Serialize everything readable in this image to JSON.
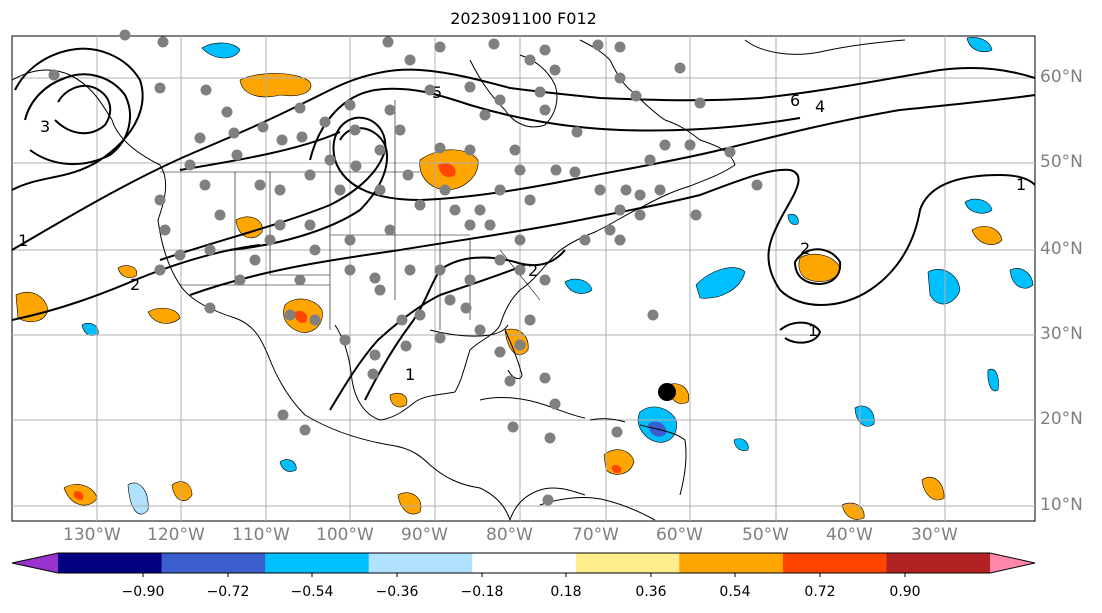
{
  "title": "2023091100 F012",
  "lon_labels": [
    "130°W",
    "120°W",
    "110°W",
    "100°W",
    "90°W",
    "80°W",
    "70°W",
    "60°W",
    "50°W",
    "40°W",
    "30°W"
  ],
  "lat_labels": [
    "10°N",
    "20°N",
    "30°N",
    "40°N",
    "50°N",
    "60°N"
  ],
  "contour_labels": [
    "1",
    "2",
    "3",
    "4",
    "5",
    "6"
  ],
  "colorbar": {
    "ticks": [
      "−0.90",
      "−0.72",
      "−0.54",
      "−0.36",
      "−0.18",
      "0.18",
      "0.36",
      "0.54",
      "0.72",
      "0.90"
    ],
    "colors": [
      "#9932cc",
      "#000080",
      "#3a5fcd",
      "#00bfff",
      "#b0e2ff",
      "#ffffff",
      "#ffec8b",
      "#ffa500",
      "#ff4500",
      "#b22222",
      "#ff88aa"
    ]
  },
  "colors": {
    "grid": "#b0b0b0",
    "coast": "#000000",
    "contour": "#000000",
    "station": "#808080",
    "marker": "#000000"
  },
  "icons": [
    "filled-contour-blobs",
    "contour-lines",
    "station-dots",
    "storm-marker"
  ]
}
